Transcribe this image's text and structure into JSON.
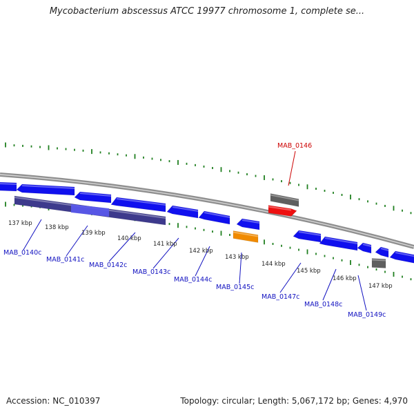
{
  "title": "Mycobacterium abscessus ATCC 19977 chromosome 1, complete se...",
  "footer": {
    "accession": "Accession: NC_010397",
    "summary": "Topology: circular; Length: 5,067,172 bp; Genes: 4,970"
  },
  "colors": {
    "gene_blue": "#1010ee",
    "gene_highlight": "#5a5aee",
    "gene_red": "#ee1010",
    "gene_gray": "#5f5f5f",
    "gene_orange": "#f08a00",
    "cds_dark": "#3d3a8c",
    "backbone": "#8f8f8f",
    "ticks": "#1f7f1f",
    "label_blue": "#1010c0",
    "label_red": "#cc0000"
  },
  "scale_labels": [
    "137 kbp",
    "138 kbp",
    "139 kbp",
    "140 kbp",
    "141 kbp",
    "142 kbp",
    "143 kbp",
    "144 kbp",
    "145 kbp",
    "146 kbp",
    "147 kbp"
  ],
  "gene_labels": [
    {
      "id": "MAB_0140c",
      "color": "blue"
    },
    {
      "id": "MAB_0141c",
      "color": "blue"
    },
    {
      "id": "MAB_0142c",
      "color": "blue"
    },
    {
      "id": "MAB_0143c",
      "color": "blue"
    },
    {
      "id": "MAB_0144c",
      "color": "blue"
    },
    {
      "id": "MAB_0145c",
      "color": "blue"
    },
    {
      "id": "MAB_0146",
      "color": "red"
    },
    {
      "id": "MAB_0147c",
      "color": "blue"
    },
    {
      "id": "MAB_0148c",
      "color": "blue"
    },
    {
      "id": "MAB_0149c",
      "color": "blue"
    }
  ]
}
